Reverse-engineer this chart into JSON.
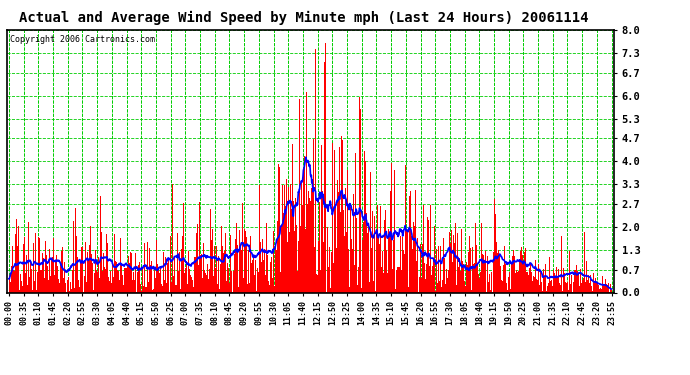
{
  "title": "Actual and Average Wind Speed by Minute mph (Last 24 Hours) 20061114",
  "copyright": "Copyright 2006 Cartronics.com",
  "yticks": [
    0.0,
    0.7,
    1.3,
    2.0,
    2.7,
    3.3,
    4.0,
    4.7,
    5.3,
    6.0,
    6.7,
    7.3,
    8.0
  ],
  "ylim": [
    0.0,
    8.0
  ],
  "bar_color": "#FF0000",
  "line_color": "#0000FF",
  "grid_color": "#00CC00",
  "background_color": "#FFFFFF",
  "title_fontsize": 11,
  "copyright_fontsize": 6.5,
  "xtick_labels": [
    "00:00",
    "00:35",
    "01:10",
    "01:45",
    "02:20",
    "02:55",
    "03:30",
    "04:05",
    "04:40",
    "05:15",
    "05:50",
    "06:25",
    "07:00",
    "07:35",
    "08:10",
    "08:45",
    "09:20",
    "09:55",
    "10:30",
    "11:05",
    "11:40",
    "12:15",
    "12:50",
    "13:25",
    "14:00",
    "14:35",
    "15:10",
    "15:45",
    "16:20",
    "16:55",
    "17:30",
    "18:05",
    "18:40",
    "19:15",
    "19:50",
    "20:25",
    "21:00",
    "21:35",
    "22:10",
    "22:45",
    "23:20",
    "23:55"
  ],
  "n_minutes": 1440
}
